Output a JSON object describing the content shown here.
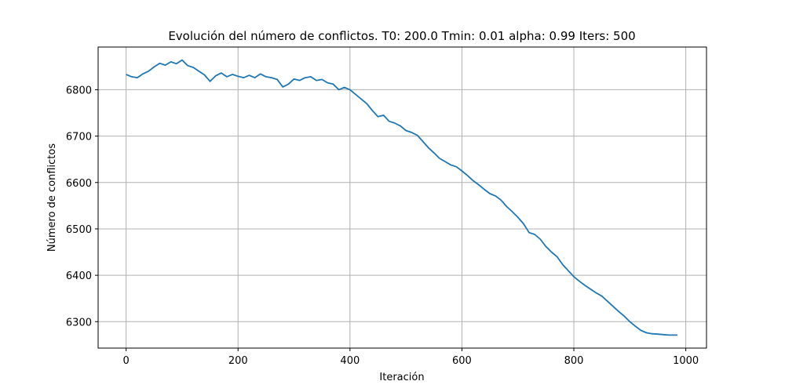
{
  "chart_data": {
    "type": "line",
    "title": "Evolución del número de conflictos. T0: 200.0 Tmin: 0.01 alpha: 0.99 Iters: 500",
    "xlabel": "Iteración",
    "ylabel": "Número de conflictos",
    "xlim": [
      -50,
      1037
    ],
    "ylim": [
      6243,
      6892
    ],
    "xticks": [
      0,
      200,
      400,
      600,
      800,
      1000
    ],
    "yticks": [
      6300,
      6400,
      6500,
      6600,
      6700,
      6800
    ],
    "grid": true,
    "line_color": "#1f77b4",
    "grid_color": "#b0b0b0",
    "series": [
      {
        "x": [
          0,
          10,
          20,
          30,
          40,
          50,
          60,
          70,
          80,
          90,
          100,
          110,
          120,
          130,
          140,
          150,
          160,
          170,
          180,
          190,
          200,
          210,
          220,
          230,
          240,
          250,
          260,
          270,
          280,
          290,
          300,
          310,
          320,
          330,
          340,
          350,
          360,
          370,
          380,
          390,
          400,
          410,
          420,
          430,
          440,
          450,
          460,
          470,
          480,
          490,
          500,
          510,
          520,
          530,
          540,
          550,
          560,
          570,
          580,
          590,
          600,
          610,
          620,
          630,
          640,
          650,
          660,
          670,
          680,
          690,
          700,
          710,
          720,
          730,
          740,
          750,
          760,
          770,
          780,
          790,
          800,
          810,
          820,
          830,
          840,
          850,
          860,
          870,
          880,
          890,
          900,
          910,
          920,
          930,
          940,
          950,
          960,
          970,
          980,
          985
        ],
        "y": [
          6833,
          6828,
          6826,
          6834,
          6840,
          6849,
          6857,
          6853,
          6860,
          6856,
          6864,
          6852,
          6848,
          6840,
          6832,
          6818,
          6830,
          6836,
          6828,
          6833,
          6829,
          6826,
          6831,
          6826,
          6834,
          6828,
          6826,
          6822,
          6806,
          6812,
          6823,
          6820,
          6826,
          6828,
          6820,
          6822,
          6815,
          6812,
          6800,
          6805,
          6800,
          6790,
          6780,
          6770,
          6755,
          6742,
          6745,
          6732,
          6728,
          6722,
          6712,
          6708,
          6702,
          6689,
          6675,
          6664,
          6652,
          6645,
          6638,
          6634,
          6625,
          6615,
          6604,
          6595,
          6585,
          6576,
          6571,
          6562,
          6548,
          6537,
          6525,
          6511,
          6492,
          6488,
          6478,
          6462,
          6450,
          6440,
          6423,
          6410,
          6397,
          6387,
          6378,
          6370,
          6362,
          6355,
          6344,
          6333,
          6322,
          6312,
          6300,
          6290,
          6281,
          6276,
          6274,
          6273,
          6272,
          6271,
          6271,
          6271
        ]
      }
    ]
  }
}
